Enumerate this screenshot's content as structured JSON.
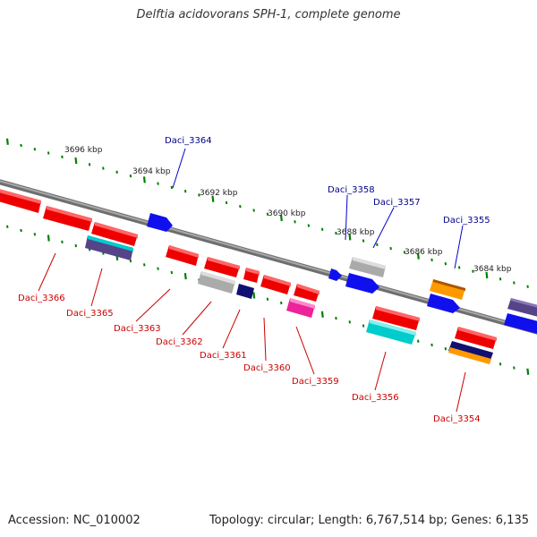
{
  "title": "Delftia acidovorans SPH-1, complete genome",
  "footer": {
    "accession": "Accession: NC_010002",
    "summary": "Topology: circular; Length: 6,767,514 bp; Genes: 6,135"
  },
  "colors": {
    "backbone": "#808080",
    "ruler_ticks": "#008000",
    "label_forward": "#00008b",
    "label_reverse": "#cc0000",
    "red": "#ee0000",
    "blue": "#1010ee",
    "gray": "#bbbbbb",
    "cyan": "#00cccc",
    "navy": "#101070",
    "magenta": "#ee2299",
    "orange": "#ff9900",
    "slate": "#554488"
  },
  "ruler_labels": [
    "3696 kbp",
    "3694 kbp",
    "3692 kbp",
    "3690 kbp",
    "3688 kbp",
    "3686 kbp",
    "3684 kbp"
  ],
  "gene_labels": {
    "forward": [
      "Daci_3364",
      "Daci_3358",
      "Daci_3357",
      "Daci_3355"
    ],
    "reverse": [
      "Daci_3366",
      "Daci_3365",
      "Daci_3363",
      "Daci_3362",
      "Daci_3361",
      "Daci_3360",
      "Daci_3359",
      "Daci_3356",
      "Daci_3354"
    ]
  }
}
